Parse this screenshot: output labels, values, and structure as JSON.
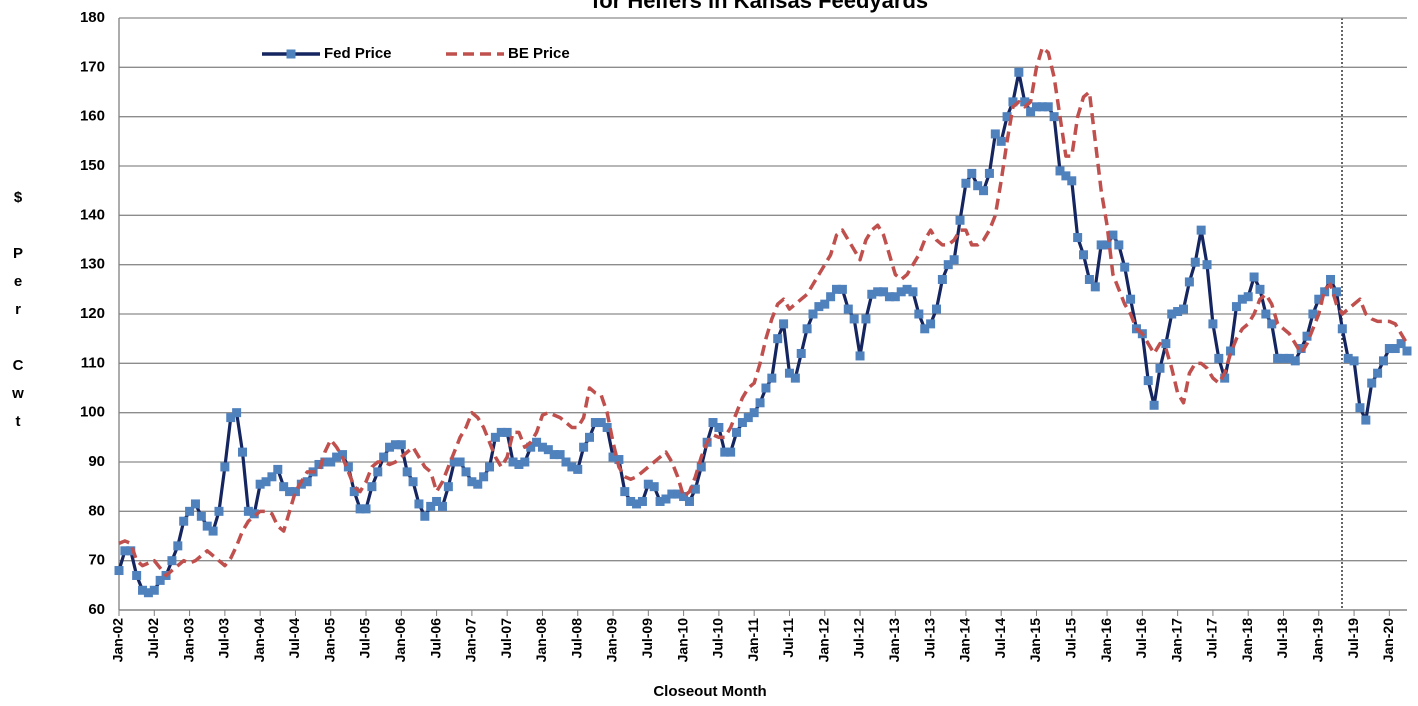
{
  "chart_data": {
    "type": "line",
    "title": "for Heifers in Kansas Feedyards",
    "x_label": "Closeout Month",
    "y_label": "$ Per Cwt",
    "categories": [
      "Jan-02",
      null,
      null,
      null,
      null,
      null,
      "Jul-02",
      null,
      null,
      null,
      null,
      null,
      "Jan-03",
      null,
      null,
      null,
      null,
      null,
      "Jul-03",
      null,
      null,
      null,
      null,
      null,
      "Jan-04",
      null,
      null,
      null,
      null,
      null,
      "Jul-04",
      null,
      null,
      null,
      null,
      null,
      "Jan-05",
      null,
      null,
      null,
      null,
      null,
      "Jul-05",
      null,
      null,
      null,
      null,
      null,
      "Jan-06",
      null,
      null,
      null,
      null,
      null,
      "Jul-06",
      null,
      null,
      null,
      null,
      null,
      "Jan-07",
      null,
      null,
      null,
      null,
      null,
      "Jul-07",
      null,
      null,
      null,
      null,
      null,
      "Jan-08",
      null,
      null,
      null,
      null,
      null,
      "Jul-08",
      null,
      null,
      null,
      null,
      null,
      "Jan-09",
      null,
      null,
      null,
      null,
      null,
      "Jul-09",
      null,
      null,
      null,
      null,
      null,
      "Jan-10",
      null,
      null,
      null,
      null,
      null,
      "Jul-10",
      null,
      null,
      null,
      null,
      null,
      "Jan-11",
      null,
      null,
      null,
      null,
      null,
      "Jul-11",
      null,
      null,
      null,
      null,
      null,
      "Jan-12",
      null,
      null,
      null,
      null,
      null,
      "Jul-12",
      null,
      null,
      null,
      null,
      null,
      "Jan-13",
      null,
      null,
      null,
      null,
      null,
      "Jul-13",
      null,
      null,
      null,
      null,
      null,
      "Jan-14",
      null,
      null,
      null,
      null,
      null,
      "Jul-14",
      null,
      null,
      null,
      null,
      null,
      "Jan-15",
      null,
      null,
      null,
      null,
      null,
      "Jul-15",
      null,
      null,
      null,
      null,
      null,
      "Jan-16",
      null,
      null,
      null,
      null,
      null,
      "Jul-16",
      null,
      null,
      null,
      null,
      null,
      "Jan-17",
      null,
      null,
      null,
      null,
      null,
      "Jul-17",
      null,
      null,
      null,
      null,
      null,
      "Jan-18",
      null,
      null,
      null,
      null,
      null,
      "Jul-18",
      null,
      null,
      null,
      null,
      null,
      "Jan-19",
      null,
      null,
      null,
      null,
      null,
      "Jul-19",
      null,
      null,
      null,
      null,
      null,
      "Jan-20",
      null,
      null,
      null
    ],
    "series": [
      {
        "name": "Fed Price",
        "color": "#14255f",
        "marker_color": "#4f81bd",
        "dashed": false,
        "markers": true,
        "values": [
          68,
          72,
          72,
          67,
          64,
          63.5,
          64,
          66,
          67,
          70,
          73,
          78,
          80,
          81.5,
          79,
          77,
          76,
          80,
          89,
          99,
          100,
          92,
          80,
          79.5,
          85.5,
          86,
          87,
          88.5,
          85,
          84,
          84,
          85.5,
          86,
          88,
          89.5,
          90,
          90,
          91,
          91.5,
          89,
          84,
          80.5,
          80.5,
          85,
          88,
          91,
          93,
          93.5,
          93.5,
          88,
          86,
          81.5,
          79,
          81,
          82,
          81,
          85,
          90,
          90,
          88,
          86,
          85.5,
          87,
          89,
          95,
          96,
          96,
          90,
          89.5,
          90,
          93,
          94,
          93,
          92.5,
          91.5,
          91.5,
          90,
          89,
          88.5,
          93,
          95,
          98,
          98,
          97,
          91,
          90.5,
          84,
          82,
          81.5,
          82,
          85.5,
          85,
          82,
          82.5,
          83.5,
          83.5,
          83,
          82,
          84.5,
          89,
          94,
          98,
          97,
          92,
          92,
          96,
          98,
          99,
          100,
          102,
          105,
          107,
          115,
          118,
          108,
          107,
          112,
          117,
          120,
          121.5,
          122,
          123.5,
          125,
          125,
          121,
          119,
          111.5,
          119,
          124,
          124.5,
          124.5,
          123.5,
          123.5,
          124.5,
          125,
          124.5,
          120,
          117,
          118,
          121,
          127,
          130,
          131,
          139,
          146.5,
          148.5,
          146,
          145,
          148.5,
          156.5,
          155,
          160,
          163,
          169,
          163,
          161,
          162,
          162,
          162,
          160,
          149,
          148,
          147,
          135.5,
          132,
          127,
          125.5,
          134,
          134,
          136,
          134,
          129.5,
          123,
          117,
          116,
          106.5,
          101.5,
          109,
          114,
          120,
          120.5,
          121,
          126.5,
          130.5,
          137,
          130,
          118,
          111,
          107,
          112.5,
          121.5,
          123,
          123.5,
          127.5,
          125,
          120,
          118,
          111,
          111,
          111,
          110.5,
          113,
          115.5,
          120,
          123,
          124.5,
          127,
          124.5,
          117,
          111,
          110.5,
          101,
          98.5,
          106,
          108,
          110.5,
          113,
          113,
          114,
          112.5
        ]
      },
      {
        "name": "BE Price",
        "color": "#c0504d",
        "dashed": true,
        "markers": false,
        "values": [
          73.5,
          74,
          73.5,
          70,
          69,
          69.5,
          70,
          68.5,
          67,
          68,
          69,
          70,
          69.5,
          70,
          71,
          72,
          71,
          70,
          69,
          70.5,
          73,
          76,
          78,
          79,
          80,
          80,
          79.5,
          77,
          76,
          80,
          84,
          86,
          88,
          88,
          88,
          92,
          94.5,
          93,
          91,
          88,
          85,
          84,
          86,
          89,
          90,
          90,
          89.5,
          90,
          91,
          92,
          93,
          91,
          89,
          88,
          84,
          86,
          89,
          92,
          95,
          97,
          100,
          99,
          97,
          94,
          91,
          89,
          91,
          96,
          96,
          93,
          94,
          96,
          99.5,
          100,
          99.5,
          99,
          98,
          97,
          97,
          99,
          105,
          104,
          103.5,
          100,
          94,
          89,
          87,
          86.5,
          87,
          88,
          89,
          90,
          91,
          92,
          90,
          87,
          83,
          84,
          87,
          91,
          94,
          95.5,
          95,
          95,
          97,
          100,
          103,
          105,
          106,
          110,
          115,
          119,
          122,
          123,
          121,
          122,
          123,
          124,
          126,
          128,
          130,
          132,
          136,
          137,
          135,
          133,
          131,
          135,
          137,
          138,
          136,
          132,
          128,
          127,
          128,
          130,
          132,
          135,
          137,
          135,
          134,
          134,
          135,
          137,
          137,
          134,
          134,
          135,
          137,
          140,
          147,
          155,
          162,
          163,
          162,
          163,
          170,
          174,
          173,
          168,
          160,
          152,
          152,
          160,
          164,
          165,
          155,
          145,
          138,
          128,
          125,
          122,
          120,
          117,
          116,
          114,
          112,
          114,
          113,
          109,
          104,
          102,
          108,
          110,
          110,
          109,
          107,
          106,
          108,
          112,
          115,
          117,
          118,
          120,
          123,
          124,
          122,
          118,
          117,
          116,
          114,
          112,
          114,
          117,
          120,
          125,
          126,
          122,
          120,
          121,
          122,
          123,
          120,
          119,
          118.5,
          118.5,
          118.5,
          118,
          116,
          114
        ]
      }
    ],
    "ylim": [
      60,
      180
    ],
    "yticks": [
      60,
      70,
      80,
      90,
      100,
      110,
      120,
      130,
      140,
      150,
      160,
      170,
      180
    ],
    "grid": true,
    "legend": "upper left"
  }
}
